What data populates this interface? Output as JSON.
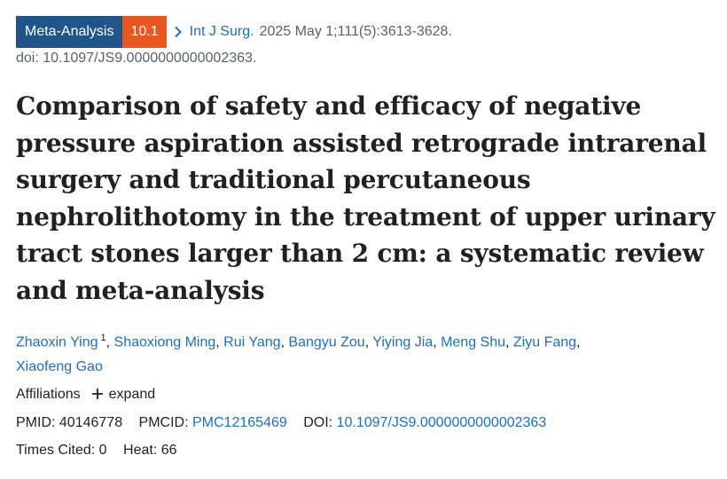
{
  "badge": {
    "type": "Meta-Analysis",
    "impact_factor": "10.1"
  },
  "source": {
    "journal": "Int J Surg.",
    "citation": "2025 May 1;111(5):3613-3628.",
    "doi_line": "doi: 10.1097/JS9.0000000000002363."
  },
  "article": {
    "title": "Comparison of safety and efficacy of negative pressure aspiration assisted retrograde intrarenal surgery and traditional percutaneous nephrolithotomy in the treatment of upper urinary tract stones larger than 2 cm: a systematic review and meta-analysis"
  },
  "authors": [
    {
      "name": "Zhaoxin Ying",
      "sup": "1"
    },
    {
      "name": "Shaoxiong Ming"
    },
    {
      "name": "Rui Yang"
    },
    {
      "name": "Bangyu Zou"
    },
    {
      "name": "Yiying Jia"
    },
    {
      "name": "Meng Shu"
    },
    {
      "name": "Ziyu Fang"
    },
    {
      "name": "Xiaofeng Gao"
    }
  ],
  "affiliations": {
    "label": "Affiliations",
    "expand_label": "expand"
  },
  "ids": {
    "pmid_label": "PMID:",
    "pmid": "40146778",
    "pmcid_label": "PMCID:",
    "pmcid": "PMC12165469",
    "doi_label": "DOI:",
    "doi": "10.1097/JS9.0000000000002363"
  },
  "stats": {
    "cited_label": "Times Cited:",
    "cited": "0",
    "heat_label": "Heat:",
    "heat": "66"
  },
  "icons": {
    "chevron": "chevron-right-icon",
    "plus": "plus-icon"
  },
  "colors": {
    "badge_type": "#20558a",
    "badge_if": "#e8571f",
    "link": "#1c6ec4"
  }
}
